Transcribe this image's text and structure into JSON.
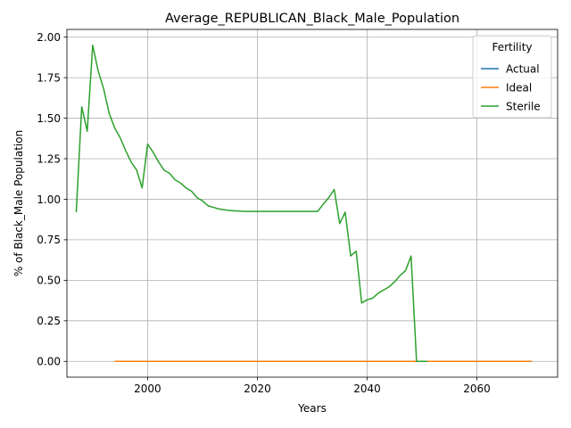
{
  "chart_data": {
    "type": "line",
    "title": "Average_REPUBLICAN_Black_Male_Population",
    "xlabel": "Years",
    "ylabel": "% of Black_Male Population",
    "xlim": [
      1985.3,
      2074.7
    ],
    "ylim": [
      -0.0975,
      2.0475
    ],
    "xticks": [
      2000,
      2020,
      2040,
      2060
    ],
    "yticks": [
      0.0,
      0.25,
      0.5,
      0.75,
      1.0,
      1.25,
      1.5,
      1.75,
      2.0
    ],
    "ytick_labels": [
      "0.00",
      "0.25",
      "0.50",
      "0.75",
      "1.00",
      "1.25",
      "1.50",
      "1.75",
      "2.00"
    ],
    "grid": true,
    "legend": {
      "title": "Fertility",
      "placement": "top-right"
    },
    "series": [
      {
        "name": "Actual",
        "color": "#1f77b4",
        "x": [
          1994,
          2000,
          2010,
          2020,
          2030,
          2040,
          2050,
          2060,
          2070
        ],
        "y": [
          0,
          0,
          0,
          0,
          0,
          0,
          0,
          0,
          0
        ]
      },
      {
        "name": "Ideal",
        "color": "#ff7f0e",
        "x": [
          1994,
          2000,
          2010,
          2020,
          2030,
          2040,
          2050,
          2060,
          2070
        ],
        "y": [
          0,
          0,
          0,
          0,
          0,
          0,
          0,
          0,
          0
        ]
      },
      {
        "name": "Sterile",
        "color": "#2ca02c",
        "x": [
          1987,
          1988,
          1989,
          1990,
          1991,
          1992,
          1993,
          1994,
          1995,
          1996,
          1997,
          1998,
          1999,
          2000,
          2001,
          2002,
          2003,
          2004,
          2005,
          2006,
          2007,
          2008,
          2009,
          2010,
          2011,
          2012,
          2013,
          2014,
          2015,
          2016,
          2017,
          2018,
          2019,
          2020,
          2021,
          2022,
          2023,
          2024,
          2025,
          2026,
          2027,
          2028,
          2029,
          2030,
          2031,
          2032,
          2033,
          2034,
          2035,
          2036,
          2037,
          2038,
          2039,
          2040,
          2041,
          2042,
          2043,
          2044,
          2045,
          2046,
          2047,
          2048,
          2049,
          2050,
          2051
        ],
        "y": [
          0.92,
          1.57,
          1.42,
          1.95,
          1.79,
          1.68,
          1.53,
          1.44,
          1.38,
          1.3,
          1.23,
          1.18,
          1.07,
          1.34,
          1.29,
          1.23,
          1.18,
          1.16,
          1.12,
          1.1,
          1.07,
          1.05,
          1.01,
          0.99,
          0.96,
          0.95,
          0.94,
          0.935,
          0.93,
          0.928,
          0.926,
          0.925,
          0.925,
          0.925,
          0.925,
          0.925,
          0.925,
          0.925,
          0.925,
          0.925,
          0.925,
          0.925,
          0.925,
          0.925,
          0.925,
          0.97,
          1.01,
          1.06,
          0.85,
          0.92,
          0.65,
          0.68,
          0.36,
          0.38,
          0.39,
          0.42,
          0.44,
          0.46,
          0.49,
          0.53,
          0.56,
          0.65,
          0.0,
          0.0,
          0.0
        ]
      }
    ]
  }
}
